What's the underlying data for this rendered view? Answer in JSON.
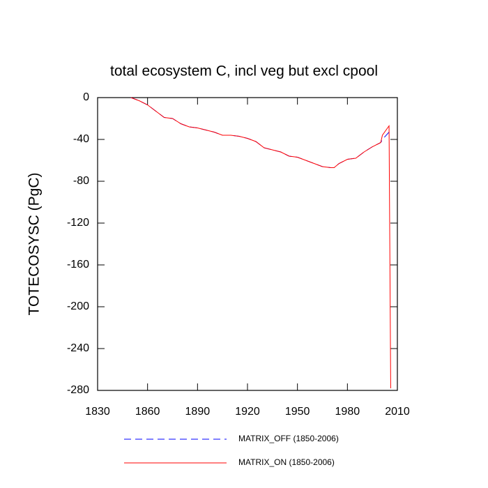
{
  "chart_data": {
    "type": "line",
    "title": "total ecosystem C, incl veg but excl cpool",
    "y_label": "TOTECOSYSC  (PgC)",
    "x": [
      1850,
      1855,
      1860,
      1865,
      1870,
      1875,
      1880,
      1885,
      1890,
      1895,
      1900,
      1905,
      1910,
      1915,
      1920,
      1925,
      1930,
      1935,
      1940,
      1945,
      1950,
      1955,
      1960,
      1965,
      1970,
      1972,
      1975,
      1980,
      1985,
      1990,
      1995,
      2000,
      2001,
      2005,
      2006
    ],
    "series": [
      {
        "name": "MATRIX_OFF (1850-2006)",
        "color": "#0000ff",
        "dashed": true,
        "values": [
          0,
          -3,
          -7,
          -13,
          -19,
          -20,
          -25,
          -28,
          -29,
          -31,
          -33,
          -36,
          -36,
          -37,
          -39,
          -42,
          -48,
          -50,
          -52,
          -56,
          -57,
          -60,
          -63,
          -66,
          -67,
          -67,
          -63,
          -59,
          -58,
          -52,
          -47,
          -43,
          -40,
          -33,
          null
        ]
      },
      {
        "name": "MATRIX_ON (1850-2006)",
        "color": "#ff0000",
        "dashed": false,
        "values": [
          0,
          -3,
          -7,
          -13,
          -19,
          -20,
          -25,
          -28,
          -29,
          -31,
          -33,
          -36,
          -36,
          -37,
          -39,
          -42,
          -48,
          -50,
          -52,
          -56,
          -57,
          -60,
          -63,
          -66,
          -67,
          -67,
          -63,
          -59,
          -58,
          -52,
          -47,
          -43,
          -36,
          -27,
          -278
        ]
      }
    ],
    "xlim": [
      1830,
      2010
    ],
    "xticks": [
      1830,
      1860,
      1890,
      1920,
      1950,
      1980,
      2010
    ],
    "ylim": [
      -280,
      0
    ],
    "yticks": [
      0,
      -40,
      -80,
      -120,
      -160,
      -200,
      -240,
      -280
    ],
    "grid": false,
    "legend": "bottom"
  }
}
